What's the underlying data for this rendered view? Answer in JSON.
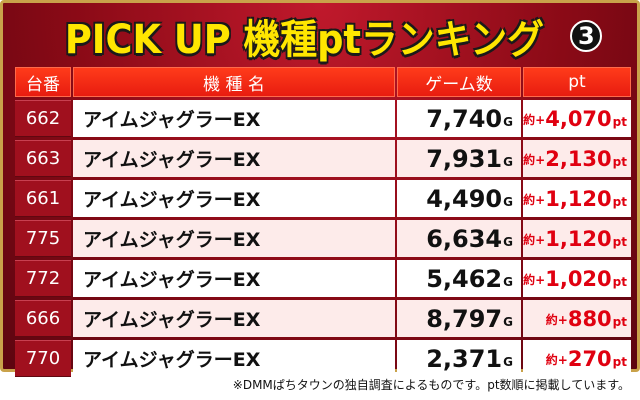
{
  "title": {
    "text": "PICK UP 機種ptランキング",
    "badge": "3"
  },
  "table": {
    "headers": [
      "台番",
      "機 種 名",
      "ゲーム数",
      "pt"
    ],
    "games_unit": "G",
    "pt_prefix": "約+",
    "pt_unit": "pt",
    "rows": [
      {
        "machine_no": "662",
        "name": "アイムジャグラーEX",
        "games": "7,740",
        "pt": "4,070"
      },
      {
        "machine_no": "663",
        "name": "アイムジャグラーEX",
        "games": "7,931",
        "pt": "2,130"
      },
      {
        "machine_no": "661",
        "name": "アイムジャグラーEX",
        "games": "4,490",
        "pt": "1,120"
      },
      {
        "machine_no": "775",
        "name": "アイムジャグラーEX",
        "games": "6,634",
        "pt": "1,120"
      },
      {
        "machine_no": "772",
        "name": "アイムジャグラーEX",
        "games": "5,462",
        "pt": "1,020"
      },
      {
        "machine_no": "666",
        "name": "アイムジャグラーEX",
        "games": "8,797",
        "pt": "880"
      },
      {
        "machine_no": "770",
        "name": "アイムジャグラーEX",
        "games": "2,371",
        "pt": "270"
      }
    ]
  },
  "footnote": "※DMMぱちタウンの独自調査によるものです。pt数順に掲載しています。",
  "colors": {
    "frame_red": "#8a0a16",
    "header_red": "#e81c10",
    "title_yellow": "#ffe600",
    "pt_red": "#e00010",
    "row_pink": "#fdebea"
  }
}
